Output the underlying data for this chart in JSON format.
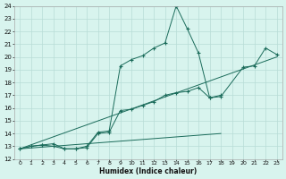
{
  "xlabel": "Humidex (Indice chaleur)",
  "background_color": "#d8f4ee",
  "grid_color": "#b8ddd6",
  "line_color": "#1a6b5a",
  "xlim": [
    -0.5,
    23.5
  ],
  "ylim": [
    12,
    24
  ],
  "xticks": [
    0,
    1,
    2,
    3,
    4,
    5,
    6,
    7,
    8,
    9,
    10,
    11,
    12,
    13,
    14,
    15,
    16,
    17,
    18,
    19,
    20,
    21,
    22,
    23
  ],
  "yticks": [
    12,
    13,
    14,
    15,
    16,
    17,
    18,
    19,
    20,
    21,
    22,
    23,
    24
  ],
  "line1_x": [
    0,
    1,
    2,
    3,
    4,
    5,
    6,
    7,
    8,
    9,
    10,
    11,
    12,
    13,
    14,
    15,
    16,
    17,
    18,
    20,
    21,
    22,
    23
  ],
  "line1_y": [
    12.8,
    13.0,
    13.1,
    13.0,
    12.8,
    12.8,
    13.0,
    14.1,
    14.2,
    19.3,
    19.8,
    20.1,
    20.7,
    21.1,
    24.0,
    22.2,
    20.3,
    16.8,
    16.9,
    19.2,
    19.3,
    20.7,
    20.2
  ],
  "line2_x": [
    0,
    1,
    2,
    3,
    4,
    5,
    6,
    7,
    8,
    9,
    10,
    11,
    12,
    13,
    14,
    15,
    16,
    17,
    18
  ],
  "line2_y": [
    12.8,
    13.0,
    13.1,
    13.2,
    12.8,
    12.8,
    12.9,
    14.0,
    14.1,
    15.8,
    15.9,
    16.2,
    16.5,
    17.0,
    17.2,
    17.3,
    17.6,
    16.8,
    17.0
  ],
  "line3_x": [
    0,
    23
  ],
  "line3_y": [
    12.8,
    20.0
  ],
  "line4_x": [
    0,
    18
  ],
  "line4_y": [
    12.8,
    14.0
  ]
}
